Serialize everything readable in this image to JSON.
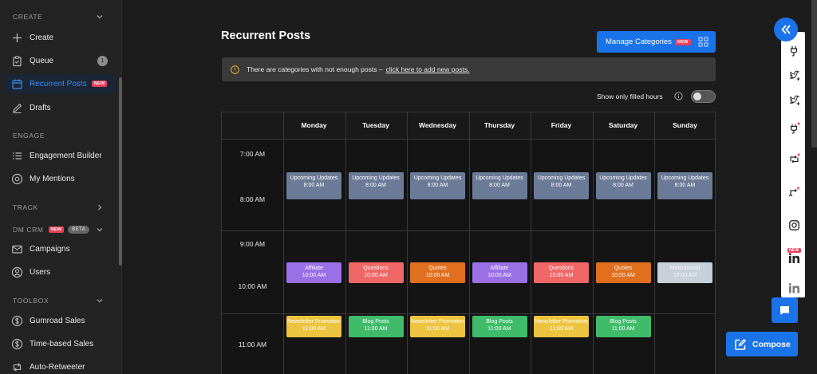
{
  "sidebar": {
    "sections": [
      {
        "label": "CREATE",
        "chevron": "down"
      },
      {
        "label": "ENGAGE",
        "chevron": "none"
      },
      {
        "label": "TRACK",
        "chevron": "right"
      },
      {
        "label": "DM CRM",
        "badge_new": "NEW",
        "badge_beta": "BETA",
        "chevron": "down"
      },
      {
        "label": "TOOLBOX",
        "chevron": "down"
      }
    ],
    "items": [
      {
        "label": "Create",
        "icon": "plus-icon"
      },
      {
        "label": "Queue",
        "icon": "clipboard-icon",
        "count": "1"
      },
      {
        "label": "Recurrent Posts",
        "icon": "calendar-icon",
        "badge": "NEW",
        "active": true
      },
      {
        "label": "Drafts",
        "icon": "pencil-icon"
      },
      {
        "label": "Engagement Builder",
        "icon": "list-icon"
      },
      {
        "label": "My Mentions",
        "icon": "at-icon"
      },
      {
        "label": "Campaigns",
        "icon": "mail-icon"
      },
      {
        "label": "Users",
        "icon": "user-circle-icon"
      },
      {
        "label": "Gumroad Sales",
        "icon": "dollar-icon"
      },
      {
        "label": "Time-based Sales",
        "icon": "dollar-icon"
      },
      {
        "label": "Auto-Retweeter",
        "icon": "retweet-icon"
      }
    ]
  },
  "main": {
    "title": "Recurrent Posts",
    "manage_button": {
      "label": "Manage Categories",
      "badge": "NEW"
    },
    "alert": {
      "text": "There are categories with not enough posts –",
      "link": "click here to add new posts."
    },
    "filter": {
      "label": "Show only filled hours",
      "enabled": false
    }
  },
  "calendar": {
    "days": [
      "Monday",
      "Tuesday",
      "Wednesday",
      "Thursday",
      "Friday",
      "Saturday",
      "Sunday"
    ],
    "times": [
      "7:00 AM",
      "8:00 AM",
      "9:00 AM",
      "10:00 AM",
      "11:00 AM"
    ],
    "events": [
      {
        "day": 0,
        "hour": "8:00 AM",
        "name": "Upcoming Updates",
        "time": "8:00 AM",
        "color": "#6b7a96"
      },
      {
        "day": 1,
        "hour": "8:00 AM",
        "name": "Upcoming Updates",
        "time": "8:00 AM",
        "color": "#6b7a96"
      },
      {
        "day": 2,
        "hour": "8:00 AM",
        "name": "Upcoming Updates",
        "time": "8:00 AM",
        "color": "#6b7a96"
      },
      {
        "day": 3,
        "hour": "8:00 AM",
        "name": "Upcoming Updates",
        "time": "8:00 AM",
        "color": "#6b7a96"
      },
      {
        "day": 4,
        "hour": "8:00 AM",
        "name": "Upcoming Updates",
        "time": "8:00 AM",
        "color": "#6b7a96"
      },
      {
        "day": 5,
        "hour": "8:00 AM",
        "name": "Upcoming Updates",
        "time": "8:00 AM",
        "color": "#6b7a96"
      },
      {
        "day": 6,
        "hour": "8:00 AM",
        "name": "Upcoming Updates",
        "time": "8:00 AM",
        "color": "#6b7a96"
      },
      {
        "day": 0,
        "hour": "10:00 AM",
        "name": "Affiliate",
        "time": "10:00 AM",
        "color": "#9b6fe6"
      },
      {
        "day": 1,
        "hour": "10:00 AM",
        "name": "Questions",
        "time": "10:00 AM",
        "color": "#ef6767"
      },
      {
        "day": 2,
        "hour": "10:00 AM",
        "name": "Quotes",
        "time": "10:00 AM",
        "color": "#e07020"
      },
      {
        "day": 3,
        "hour": "10:00 AM",
        "name": "Affiliate",
        "time": "10:00 AM",
        "color": "#9b6fe6"
      },
      {
        "day": 4,
        "hour": "10:00 AM",
        "name": "Questions",
        "time": "10:00 AM",
        "color": "#ef6767"
      },
      {
        "day": 5,
        "hour": "10:00 AM",
        "name": "Quotes",
        "time": "10:00 AM",
        "color": "#e07020"
      },
      {
        "day": 6,
        "hour": "10:00 AM",
        "name": "Motivational",
        "time": "10:00 AM",
        "color": "#c8d0da"
      },
      {
        "day": 0,
        "hour": "11:00 AM",
        "name": "Newsletter Promotion",
        "time": "11:00 AM",
        "color": "#ecc440"
      },
      {
        "day": 1,
        "hour": "11:00 AM",
        "name": "Blog Posts",
        "time": "11:00 AM",
        "color": "#3fbb6a"
      },
      {
        "day": 2,
        "hour": "11:00 AM",
        "name": "Newsletter Promotion",
        "time": "11:00 AM",
        "color": "#ecc440"
      },
      {
        "day": 3,
        "hour": "11:00 AM",
        "name": "Blog Posts",
        "time": "11:00 AM",
        "color": "#3fbb6a"
      },
      {
        "day": 4,
        "hour": "11:00 AM",
        "name": "Newsletter Promotion",
        "time": "11:00 AM",
        "color": "#ecc440"
      },
      {
        "day": 5,
        "hour": "11:00 AM",
        "name": "Blog Posts",
        "time": "11:00 AM",
        "color": "#3fbb6a"
      }
    ]
  },
  "right_rail": {
    "icons": [
      "plug-icon",
      "bird-plus-icon",
      "bird-plus-icon",
      "plug-dot-icon",
      "retweet-dot-icon",
      "retweet-x-icon",
      "instagram-icon",
      "linkedin-new-icon",
      "linkedin-icon"
    ],
    "linkedin_badge": "NEW"
  },
  "compose": {
    "label": "Compose"
  },
  "colors": {
    "accent": "#1a73e8",
    "new_badge": "#e8405a",
    "active_item": "#3d8ef0"
  }
}
